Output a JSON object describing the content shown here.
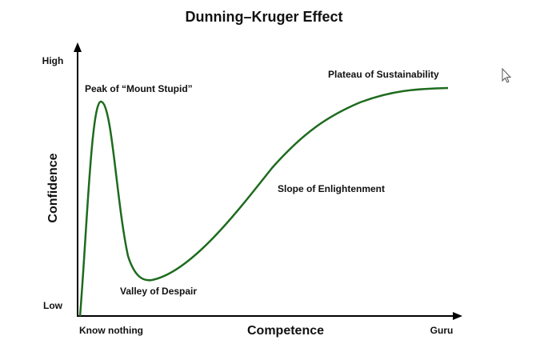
{
  "title": "Dunning–Kruger Effect",
  "y_axis": {
    "label": "Confidence",
    "high": "High",
    "low": "Low"
  },
  "x_axis": {
    "label": "Competence",
    "start": "Know nothing",
    "end": "Guru"
  },
  "annotations": [
    "Peak of “Mount Stupid”",
    "Valley of Despair",
    "Slope of Enlightenment",
    "Plateau of Sustainability"
  ]
}
